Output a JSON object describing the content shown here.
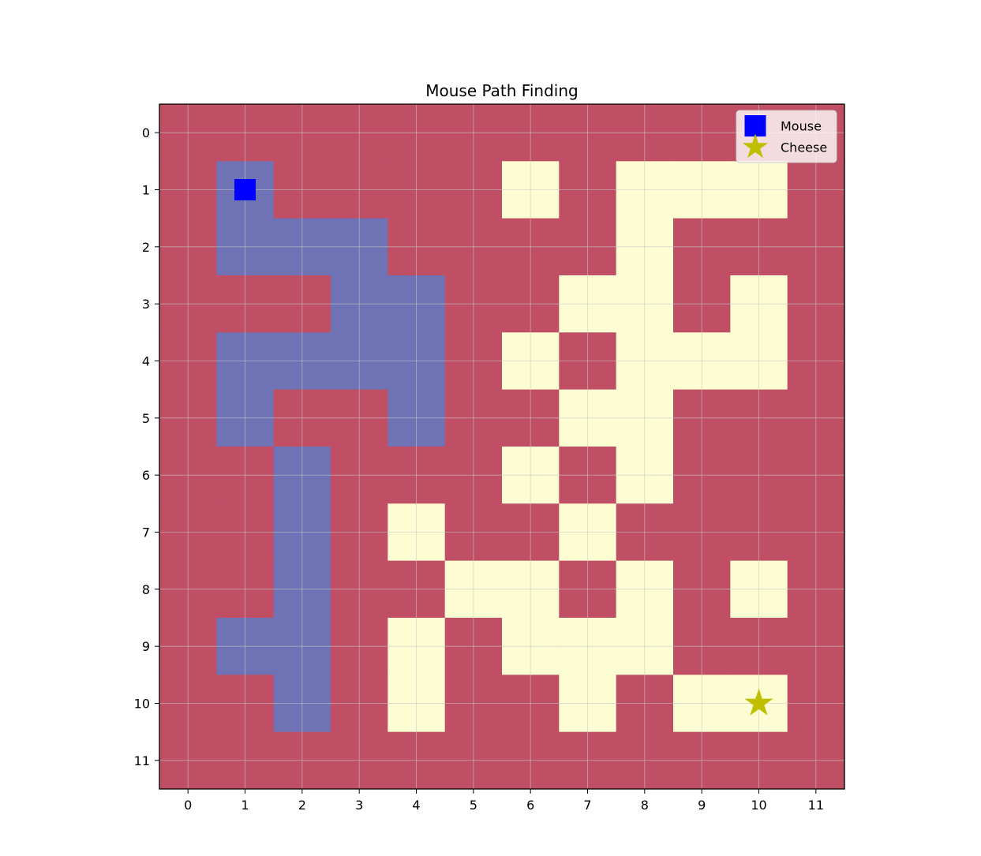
{
  "chart_data": {
    "type": "heatmap",
    "title": "Mouse Path Finding",
    "xlabel": "",
    "ylabel": "",
    "x_ticks": [
      "0",
      "1",
      "2",
      "3",
      "4",
      "5",
      "6",
      "7",
      "8",
      "9",
      "10",
      "11"
    ],
    "y_ticks": [
      "0",
      "1",
      "2",
      "3",
      "4",
      "5",
      "6",
      "7",
      "8",
      "9",
      "10",
      "11"
    ],
    "xlim": [
      -0.5,
      11.5
    ],
    "ylim": [
      11.5,
      -0.5
    ],
    "grid": true,
    "cell_legend": {
      "0": "wall",
      "1": "open",
      "2": "path"
    },
    "colors": {
      "wall": "#c04f66",
      "open": "#fcfdd3",
      "path": "#6f72b5",
      "mouse": "#0000ff",
      "cheese": "#bfbf00",
      "grid_line": "#c8c8c8"
    },
    "grid_values": [
      [
        0,
        0,
        0,
        0,
        0,
        0,
        0,
        0,
        0,
        0,
        0,
        0
      ],
      [
        0,
        2,
        0,
        0,
        0,
        0,
        1,
        0,
        1,
        1,
        1,
        0
      ],
      [
        0,
        2,
        2,
        2,
        0,
        0,
        0,
        0,
        1,
        0,
        0,
        0
      ],
      [
        0,
        0,
        0,
        2,
        2,
        0,
        0,
        1,
        1,
        0,
        1,
        0
      ],
      [
        0,
        2,
        2,
        2,
        2,
        0,
        1,
        0,
        1,
        1,
        1,
        0
      ],
      [
        0,
        2,
        0,
        0,
        2,
        0,
        0,
        1,
        1,
        0,
        0,
        0
      ],
      [
        0,
        0,
        2,
        0,
        0,
        0,
        1,
        0,
        1,
        0,
        0,
        0
      ],
      [
        0,
        0,
        2,
        0,
        1,
        0,
        0,
        1,
        0,
        0,
        0,
        0
      ],
      [
        0,
        0,
        2,
        0,
        0,
        1,
        1,
        0,
        1,
        0,
        1,
        0
      ],
      [
        0,
        2,
        2,
        0,
        1,
        0,
        1,
        1,
        1,
        0,
        0,
        0
      ],
      [
        0,
        0,
        2,
        0,
        1,
        0,
        0,
        1,
        0,
        1,
        1,
        0
      ],
      [
        0,
        0,
        0,
        0,
        0,
        0,
        0,
        0,
        0,
        0,
        0,
        0
      ]
    ],
    "markers": [
      {
        "name": "Mouse",
        "shape": "square",
        "x": 1,
        "y": 1,
        "color": "#0000ff"
      },
      {
        "name": "Cheese",
        "shape": "star",
        "x": 10,
        "y": 10,
        "color": "#bfbf00"
      }
    ],
    "legend": {
      "position": "upper-right",
      "entries": [
        {
          "label": "Mouse",
          "shape": "square",
          "color": "#0000ff"
        },
        {
          "label": "Cheese",
          "shape": "star",
          "color": "#bfbf00"
        }
      ]
    }
  }
}
